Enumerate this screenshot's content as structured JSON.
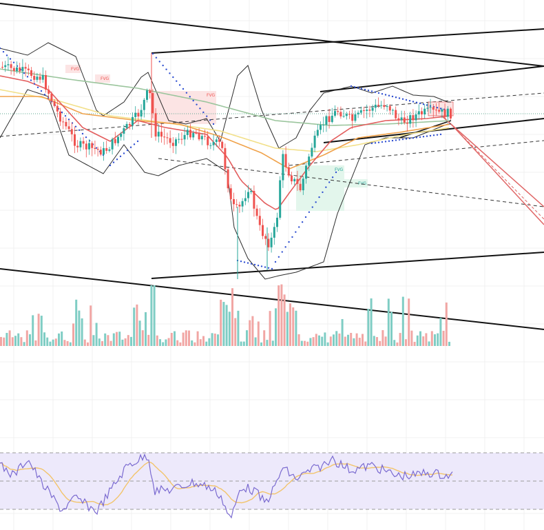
{
  "colors": {
    "bull": "#26a69a",
    "bear": "#ef5350",
    "bull_volume": "#7fcdc4",
    "bear_volume": "#f1a6a4",
    "bollinger": "#2b2b2b",
    "sma_green": "#9bc59d",
    "ema_red": "#e35d5d",
    "ema_orange": "#f0a24a",
    "ema_yellow": "#f2e08a",
    "psar": "#2f4fd1",
    "trendline": "#111111",
    "channel_red": "#e06666",
    "rsi_line": "#7a6ad0",
    "rsi_ma": "#f2c46b",
    "rsi_band": "#ede9fb",
    "fvg_bear_fill": "#fce4e4",
    "fvg_bull_fill": "#e3f6ec"
  },
  "fvg_labels": [
    {
      "id": "fvg-1",
      "text": "FVG",
      "kind": "bear"
    },
    {
      "id": "fvg-2",
      "text": "FVG",
      "kind": "bear"
    },
    {
      "id": "fvg-3",
      "text": "FVG",
      "kind": "bear"
    },
    {
      "id": "fvg-4",
      "text": "FVG",
      "kind": "bull"
    },
    {
      "id": "fvg-5",
      "text": "FVG",
      "kind": "bull"
    }
  ],
  "chart_data": [
    {
      "type": "candlestick",
      "title": "",
      "indicators": [
        "Bollinger Bands",
        "Moving averages",
        "Parabolic SAR",
        "Fair Value Gaps",
        "Trendlines"
      ],
      "grid": true,
      "axes_labels_visible": false
    },
    {
      "type": "bar",
      "title": "",
      "series": [
        {
          "values_description": "volume bars colored by candle direction"
        }
      ],
      "grid": true
    },
    {
      "type": "line",
      "title": "",
      "series": [
        {
          "values_description": "RSI oscillator"
        },
        {
          "values_description": "RSI moving average"
        }
      ],
      "band": "shaded zone between dashed upper and lower levels",
      "grid": true
    }
  ]
}
